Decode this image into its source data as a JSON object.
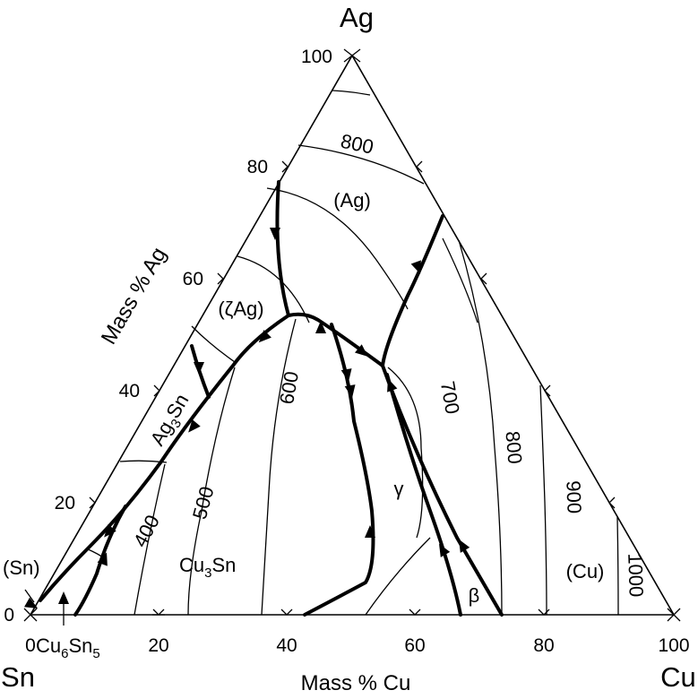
{
  "corners": {
    "top": "Ag",
    "left": "Sn",
    "right": "Cu"
  },
  "axes": {
    "bottom_label": "Mass % Cu",
    "left_label": "Mass % Ag",
    "bottom_ticks": [
      "0",
      "20",
      "40",
      "60",
      "80",
      "100"
    ],
    "left_ticks": [
      "0",
      "20",
      "40",
      "60",
      "80",
      "100"
    ]
  },
  "isotherms": {
    "t800_top": "800",
    "t700": "700",
    "t800_right": "800",
    "t900": "900",
    "t1000": "1000",
    "t600": "600",
    "t500": "500",
    "t400": "400"
  },
  "phases": {
    "ag": "(Ag)",
    "zeta_ag": "(ζAg)",
    "ag3sn_main": "Ag",
    "ag3sn_sub": "3",
    "ag3sn_tail": "Sn",
    "cu3sn_main": "Cu",
    "cu3sn_sub": "3",
    "cu3sn_tail": "Sn",
    "gamma": "γ",
    "beta": "β",
    "cu": "(Cu)",
    "sn": "(Sn)",
    "cu6sn5_main": "Cu",
    "cu6sn5_sub": "6",
    "cu6sn5_tail": "Sn",
    "cu6sn5_sub2": "5"
  }
}
